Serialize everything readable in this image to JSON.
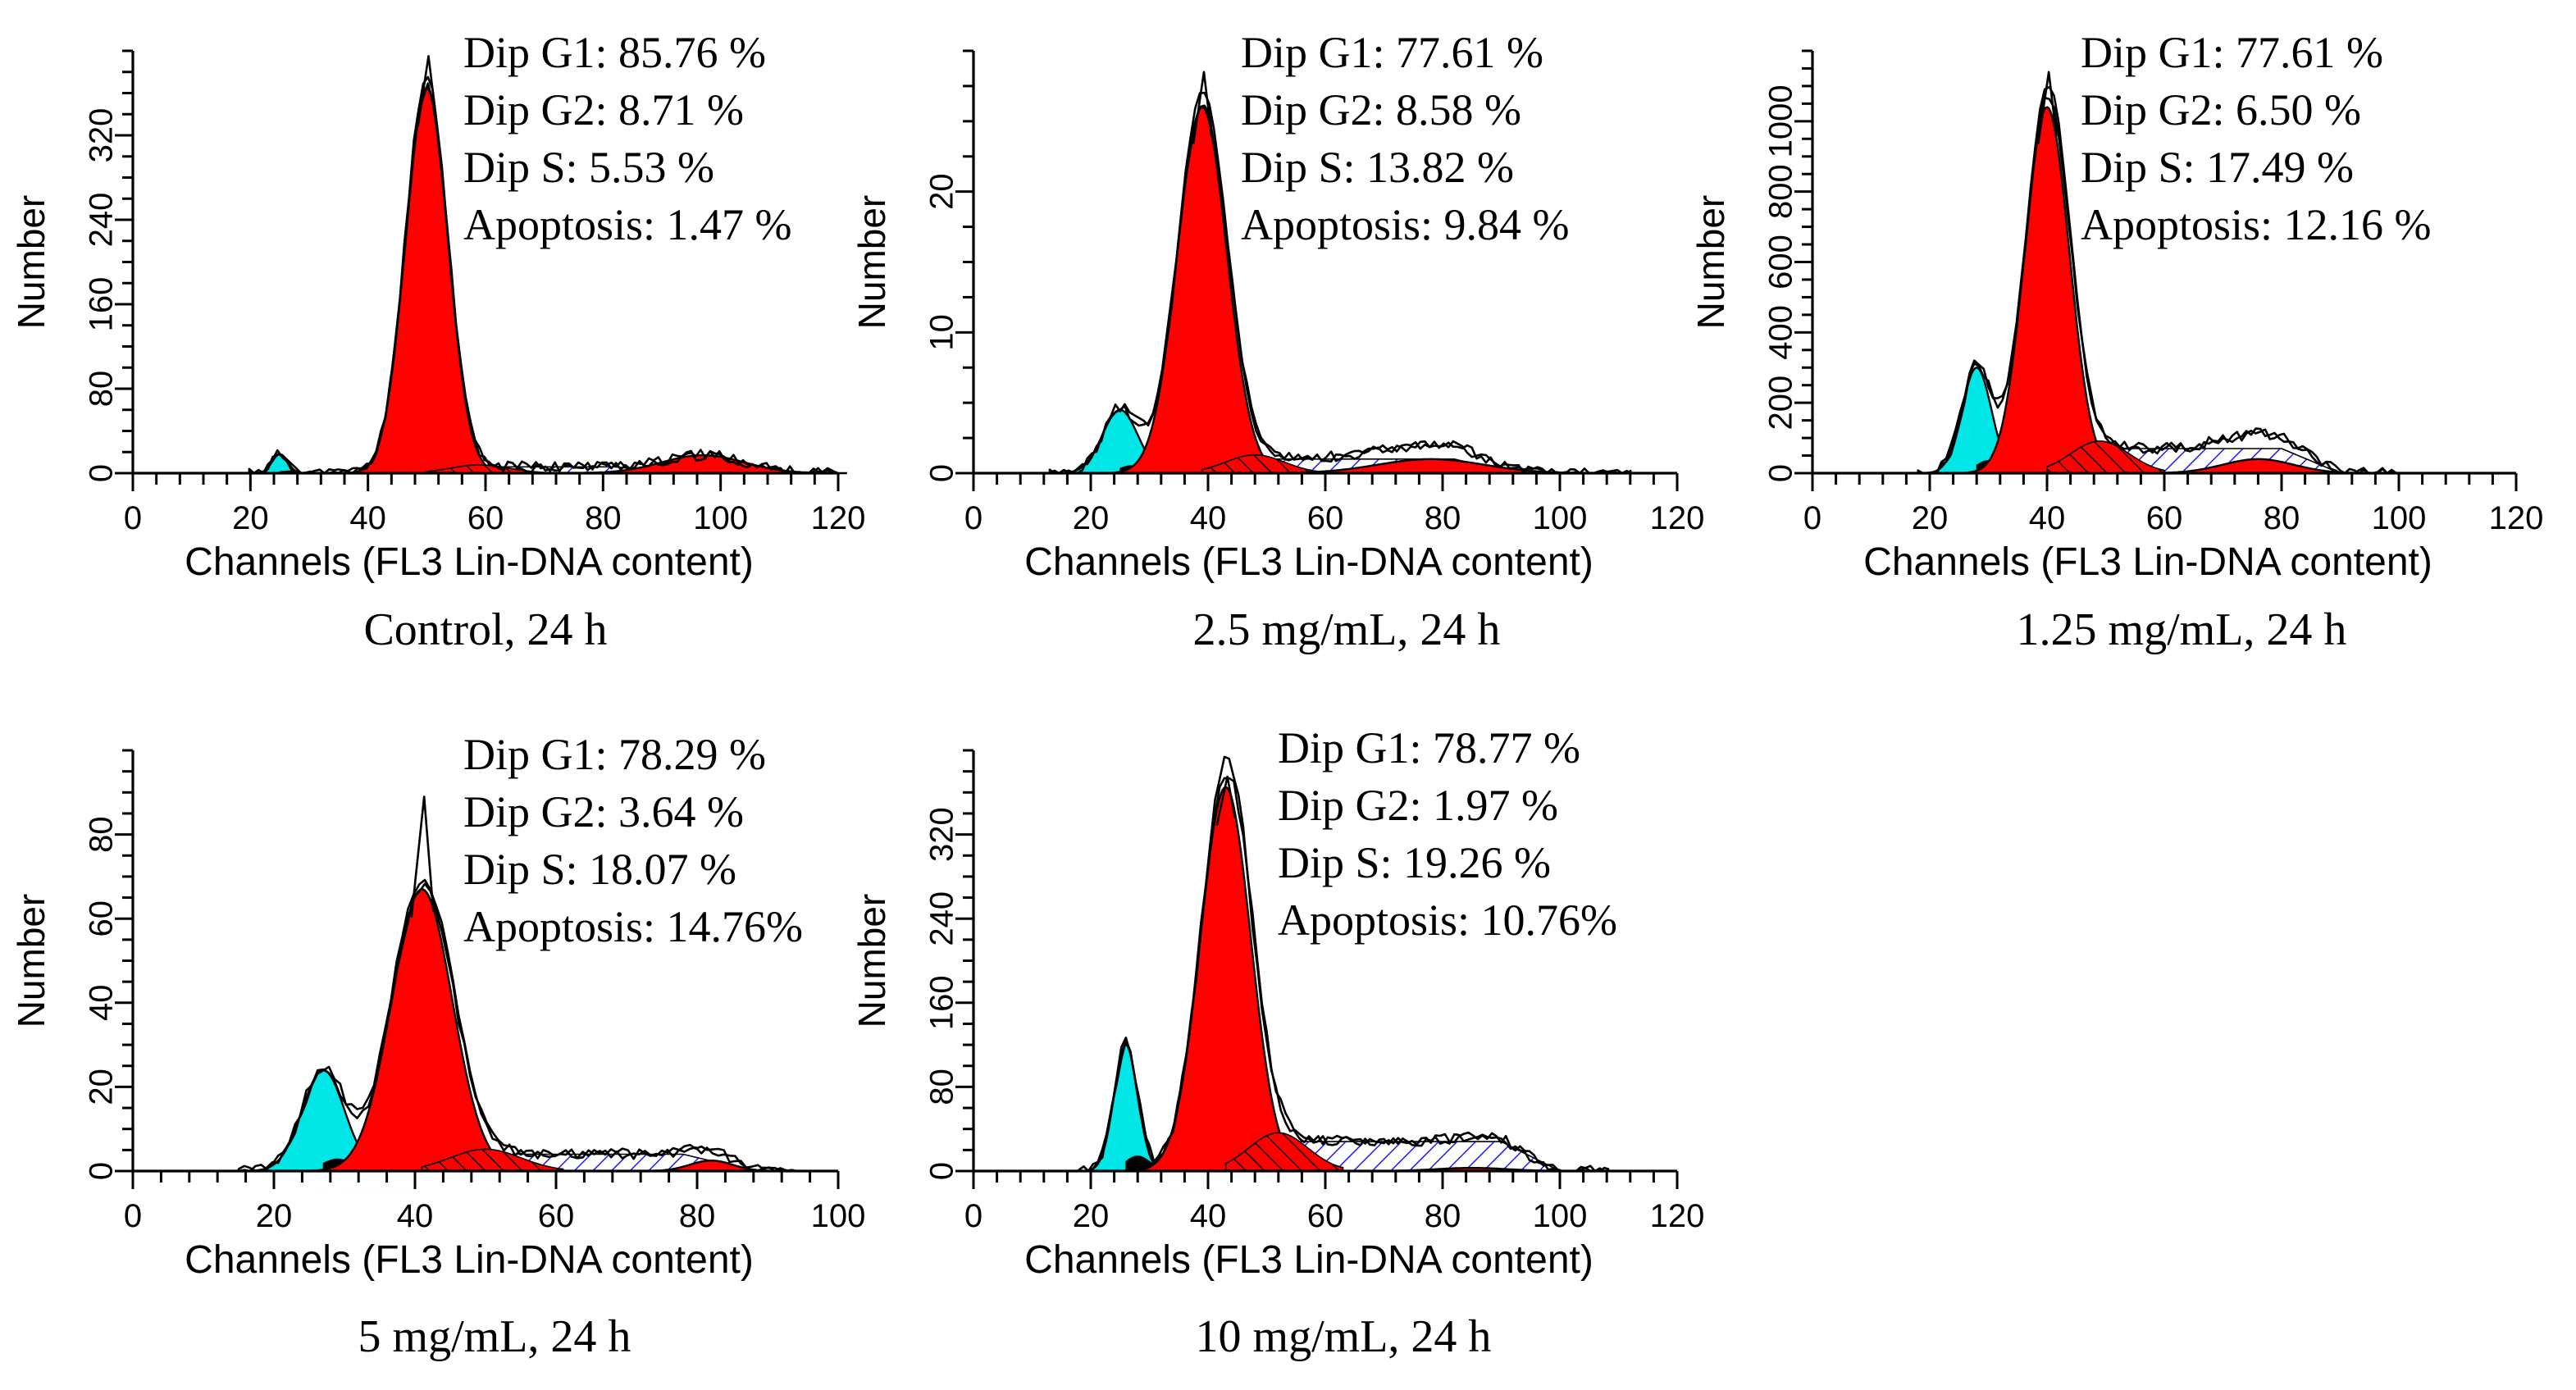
{
  "figure_title": "",
  "chart_data": [
    {
      "type": "histogram",
      "caption": "Control, 24 h",
      "xlabel": "Channels (FL3 Lin-DNA content)",
      "ylabel": "Number",
      "xlim": [
        0,
        120
      ],
      "ylim": [
        0,
        400
      ],
      "x_ticks": [
        0,
        20,
        40,
        60,
        80,
        100,
        120
      ],
      "y_ticks": [
        0,
        80,
        160,
        240,
        320
      ],
      "annotations": [
        "Dip G1: 85.76 %",
        "Dip G2: 8.71 %",
        "Dip S: 5.53 %",
        "Apoptosis: 1.47 %"
      ],
      "components": [
        {
          "name": "Apoptosis",
          "color": "#00e5e5",
          "center": 25,
          "sd": 1.3,
          "peak": 18
        },
        {
          "name": "Dip G1",
          "color": "#ff0000",
          "center": 50,
          "sd": 3.6,
          "peak": 365
        },
        {
          "name": "Dip G2",
          "color": "#ff0000",
          "center": 97,
          "sd": 7,
          "peak": 17
        },
        {
          "name": "Dip S",
          "color": "#1a1aff",
          "pattern": "hatch",
          "from": 55,
          "to": 92,
          "level": 6
        }
      ],
      "histogram_peak": 395
    },
    {
      "type": "histogram",
      "caption": "2.5 mg/mL, 24 h",
      "xlabel": "Channels (FL3 Lin-DNA content)",
      "ylabel": "Number",
      "xlim": [
        0,
        120
      ],
      "ylim": [
        0,
        30
      ],
      "x_ticks": [
        0,
        20,
        40,
        60,
        80,
        100,
        120
      ],
      "y_ticks": [
        0,
        10,
        20
      ],
      "annotations": [
        "Dip G1: 77.61 %",
        "Dip G2: 8.58 %",
        "Dip S: 13.82 %",
        "Apoptosis: 9.84 %"
      ],
      "components": [
        {
          "name": "Apoptosis",
          "color": "#00e5e5",
          "center": 25,
          "sd": 3,
          "peak": 4.5
        },
        {
          "name": "Dip G1",
          "color": "#ff0000",
          "center": 39,
          "sd": 4.2,
          "peak": 26
        },
        {
          "name": "Dip G2",
          "color": "#ff0000",
          "center": 78,
          "sd": 9,
          "peak": 1
        },
        {
          "name": "Dip S",
          "color": "#1a1aff",
          "pattern": "hatch",
          "from": 38,
          "to": 92,
          "level": 1
        }
      ],
      "histogram_peak": 28.5
    },
    {
      "type": "histogram",
      "caption": "1.25 mg/mL, 24 h",
      "xlabel": "Channels (FL3 Lin-DNA content)",
      "ylabel": "Number",
      "xlim": [
        0,
        120
      ],
      "ylim": [
        0,
        1200
      ],
      "x_ticks": [
        0,
        20,
        40,
        60,
        80,
        100,
        120
      ],
      "y_ticks": [
        0,
        200,
        400,
        600,
        800,
        1000
      ],
      "annotations": [
        "Dip G1: 77.61 %",
        "Dip G2: 6.50 %",
        "Dip S: 17.49 %",
        "Apoptosis: 12.16 %"
      ],
      "components": [
        {
          "name": "Apoptosis",
          "color": "#00e5e5",
          "center": 28,
          "sd": 2.5,
          "peak": 300
        },
        {
          "name": "Dip G1",
          "color": "#ff0000",
          "center": 40,
          "sd": 3.8,
          "peak": 1040
        },
        {
          "name": "Dip G2",
          "color": "#ff0000",
          "center": 76,
          "sd": 6,
          "peak": 40
        },
        {
          "name": "Dip S",
          "color": "#1a1aff",
          "pattern": "hatch",
          "from": 38,
          "to": 90,
          "level": 70
        }
      ],
      "histogram_peak": 1140
    },
    {
      "type": "histogram",
      "caption": "5 mg/mL, 24 h",
      "xlabel": "Channels (FL3 Lin-DNA content)",
      "ylabel": "Number",
      "xlim": [
        0,
        100
      ],
      "ylim": [
        0,
        100
      ],
      "x_ticks": [
        0,
        20,
        40,
        60,
        80,
        100
      ],
      "y_ticks": [
        0,
        20,
        40,
        60,
        80
      ],
      "annotations": [
        "Dip G1: 78.29 %",
        "Dip G2: 3.64 %",
        "Dip S: 18.07 %",
        "Apoptosis: 14.76%"
      ],
      "components": [
        {
          "name": "Apoptosis",
          "color": "#00e5e5",
          "center": 27,
          "sd": 3,
          "peak": 24
        },
        {
          "name": "Dip G1",
          "color": "#ff0000",
          "center": 41,
          "sd": 4.3,
          "peak": 67
        },
        {
          "name": "Dip G2",
          "color": "#ff0000",
          "center": 82,
          "sd": 3,
          "peak": 2.5
        },
        {
          "name": "Dip S",
          "color": "#1a1aff",
          "pattern": "hatch",
          "from": 40,
          "to": 88,
          "level": 4
        }
      ],
      "histogram_peak": 89
    },
    {
      "type": "histogram",
      "caption": "10 mg/mL, 24 h",
      "xlabel": "Channels (FL3 Lin-DNA content)",
      "ylabel": "Number",
      "xlim": [
        0,
        120
      ],
      "ylim": [
        0,
        400
      ],
      "x_ticks": [
        0,
        20,
        40,
        60,
        80,
        100,
        120
      ],
      "y_ticks": [
        0,
        80,
        160,
        240,
        320
      ],
      "annotations": [
        "Dip G1: 78.77 %",
        "Dip G2: 1.97 %",
        "Dip S: 19.26 %",
        "Apoptosis: 10.76%"
      ],
      "components": [
        {
          "name": "Apoptosis",
          "color": "#00e5e5",
          "center": 26,
          "sd": 2,
          "peak": 120
        },
        {
          "name": "Dip G1",
          "color": "#ff0000",
          "center": 43,
          "sd": 4.3,
          "peak": 365
        },
        {
          "name": "Dip G2",
          "color": "#ff0000",
          "center": 85,
          "sd": 6,
          "peak": 3
        },
        {
          "name": "Dip S",
          "color": "#1a1aff",
          "pattern": "hatch",
          "from": 40,
          "to": 100,
          "level": 28
        }
      ],
      "histogram_peak": 375
    }
  ]
}
